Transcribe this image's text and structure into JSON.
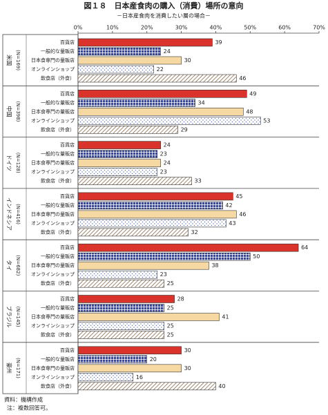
{
  "chart_data": {
    "type": "grouped-hbar",
    "title": "図１８　日本産食肉の購入（消費）場所の意向",
    "subtitle": "－日本産食肉を消費したい層の場合－",
    "categories": [
      "米国",
      "中国",
      "ドイツ",
      "インドネシア",
      "タイ",
      "ブラジル",
      "豪州"
    ],
    "category_notes": [
      "(N=169)",
      "(N=398)",
      "(N=128)",
      "(N=416)",
      "(N=682)",
      "(N=145)",
      "(N=171)"
    ],
    "series": [
      {
        "name": "百貨店",
        "color": "#d9332b",
        "pattern": "solid",
        "values": [
          39,
          49,
          24,
          45,
          64,
          28,
          30
        ]
      },
      {
        "name": "一般的な量販店",
        "color": "#3446a8",
        "pattern": "check",
        "values": [
          24,
          34,
          23,
          42,
          50,
          25,
          20
        ]
      },
      {
        "name": "日本食専門の量販店",
        "color": "#f6d9a2",
        "pattern": "solid",
        "values": [
          30,
          48,
          24,
          46,
          38,
          41,
          30
        ]
      },
      {
        "name": "オンラインショップ",
        "color": "#5a6fb0",
        "pattern": "dots",
        "values": [
          22,
          53,
          23,
          43,
          23,
          25,
          16
        ]
      },
      {
        "name": "飲食店（外食）",
        "color": "#8a6a4a",
        "pattern": "hatch",
        "values": [
          46,
          29,
          33,
          32,
          25,
          25,
          40
        ]
      }
    ],
    "xlim": [
      0,
      70
    ],
    "xticks": [
      {
        "value": 0,
        "label": "0%"
      },
      {
        "value": 10,
        "label": "10%"
      },
      {
        "value": 20,
        "label": "20%"
      },
      {
        "value": 30,
        "label": "30%"
      },
      {
        "value": 40,
        "label": "40%"
      },
      {
        "value": 50,
        "label": "50%"
      },
      {
        "value": 60,
        "label": "60%"
      },
      {
        "value": 70,
        "label": "70%"
      }
    ],
    "notes": [
      "資料：機構作成",
      "注：複数回答可。"
    ]
  }
}
